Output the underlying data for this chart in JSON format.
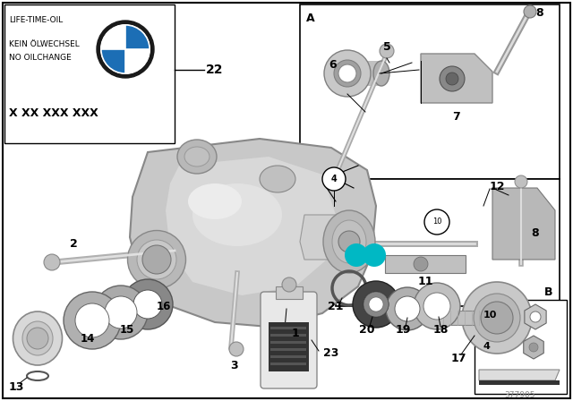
{
  "figsize": [
    6.4,
    4.48
  ],
  "dpi": 100,
  "bg_color": "#ffffff",
  "border_color": "#000000",
  "teal_color": "#00b8c4",
  "gray_part": "#c0c0c0",
  "gray_dark": "#888888",
  "gray_light": "#d8d8d8",
  "gray_med": "#aaaaaa",
  "info_lines": [
    "LIFE-TIME-OIL",
    "",
    "KEIN ÖLWECHSEL",
    "NO OILCHANGE",
    "",
    "X XX XXX XXX"
  ],
  "part_number_text": "377905"
}
